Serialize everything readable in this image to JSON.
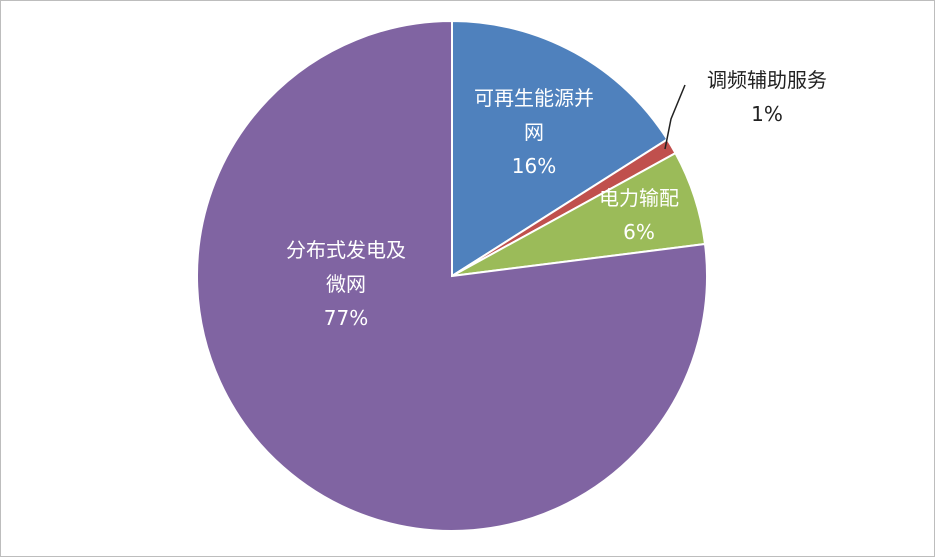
{
  "chart_data": {
    "type": "pie",
    "categories": [
      "可再生能源并网",
      "调频辅助服务",
      "电力输配",
      "分布式发电及微网"
    ],
    "values": [
      16,
      1,
      6,
      77
    ],
    "value_labels": [
      "16%",
      "1%",
      "6%",
      "77%"
    ],
    "colors": [
      "#4f81bd",
      "#c0504d",
      "#9bbb59",
      "#8064a2"
    ]
  }
}
